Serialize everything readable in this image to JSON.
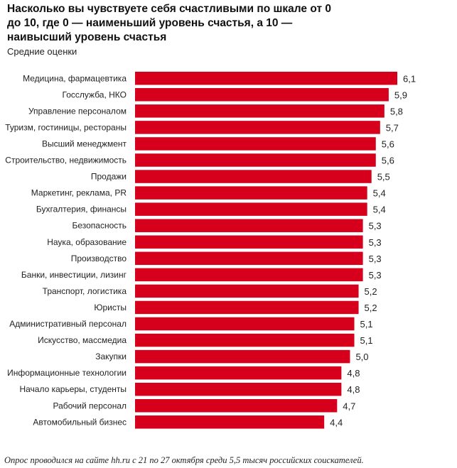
{
  "chart_data": {
    "type": "bar",
    "orientation": "horizontal",
    "title": "Насколько вы чувствуете себя счастливыми по шкале от 0 до 10, где 0 — наименьший уровень счастья, а 10 — наивысший уровень счастья",
    "subtitle": "Средние оценки",
    "xlabel": "",
    "ylabel": "",
    "xlim": [
      0,
      6.1
    ],
    "grid": false,
    "bar_color": "#d6001c",
    "categories": [
      "Медицина, фармацевтика",
      "Госслужба, НКО",
      "Управление персоналом",
      "Туризм, гостиницы, рестораны",
      "Высший менеджмент",
      "Строительство, недвижимость",
      "Продажи",
      "Маркетинг, реклама, PR",
      "Бухгалтерия, финансы",
      "Безопасность",
      "Наука, образование",
      "Производство",
      "Банки, инвестиции, лизинг",
      "Транспорт, логистика",
      "Юристы",
      "Административный персонал",
      "Искусство, массмедиа",
      "Закупки",
      "Информационные технологии",
      "Начало карьеры, студенты",
      "Рабочий персонал",
      "Автомобильный бизнес"
    ],
    "values": [
      6.1,
      5.9,
      5.8,
      5.7,
      5.6,
      5.6,
      5.5,
      5.4,
      5.4,
      5.3,
      5.3,
      5.3,
      5.3,
      5.2,
      5.2,
      5.1,
      5.1,
      5.0,
      4.8,
      4.8,
      4.7,
      4.4
    ],
    "value_labels": [
      "6,1",
      "5,9",
      "5,8",
      "5,7",
      "5,6",
      "5,6",
      "5,5",
      "5,4",
      "5,4",
      "5,3",
      "5,3",
      "5,3",
      "5,3",
      "5,2",
      "5,2",
      "5,1",
      "5,1",
      "5,0",
      "4,8",
      "4,8",
      "4,7",
      "4,4"
    ]
  },
  "footnote": "Опрос проводился на сайте hh.ru с 21 по 27 октября среди 5,5 тысяч российских соискателей."
}
